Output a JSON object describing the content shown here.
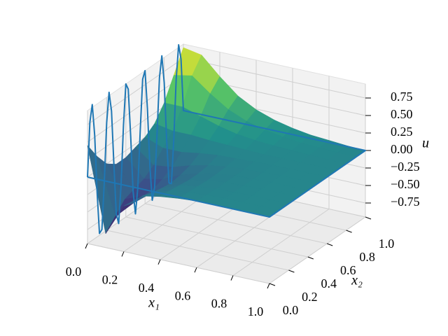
{
  "chart_data": {
    "type": "surface3d",
    "xlabel": "x₁",
    "ylabel": "x₂",
    "zlabel": "u",
    "colormap": "viridis",
    "grid": true,
    "xlim": [
      0,
      1
    ],
    "ylim": [
      0,
      1
    ],
    "zlim": [
      -0.95,
      0.95
    ],
    "xticks": [
      {
        "value": 0,
        "label": "0.0"
      },
      0.2,
      0.4,
      0.6,
      0.8,
      {
        "value": 1,
        "label": "1.0"
      }
    ],
    "yticks": [
      {
        "value": 0,
        "label": "0.0"
      },
      0.2,
      0.4,
      0.6,
      0.8,
      {
        "value": 1,
        "label": "1.0"
      }
    ],
    "zticks": [
      {
        "value": -0.75,
        "label": "−0.75"
      },
      {
        "value": -0.5,
        "label": "−0.50"
      },
      {
        "value": -0.25,
        "label": "−0.25"
      },
      {
        "value": 0,
        "label": "0.00"
      },
      0.25,
      {
        "value": 0.5,
        "label": "0.50"
      },
      0.75
    ],
    "surface": {
      "x1": [
        0,
        0.1,
        0.2,
        0.3,
        0.4,
        0.5,
        0.6,
        0.7,
        0.8,
        0.9,
        1
      ],
      "x2": [
        0,
        0.1,
        0.2,
        0.3,
        0.4,
        0.5,
        0.6,
        0.7,
        0.8,
        0.9,
        1
      ],
      "u": [
        [
          0.45,
          -0.75,
          -0.3,
          -0.1,
          -0.05,
          -0.02,
          0,
          0,
          0,
          0,
          0
        ],
        [
          0.2,
          -0.6,
          -0.35,
          -0.15,
          -0.06,
          -0.03,
          -0.01,
          0,
          0,
          0,
          0
        ],
        [
          0,
          -0.45,
          -0.35,
          -0.18,
          -0.08,
          -0.04,
          -0.02,
          -0.01,
          0,
          0,
          0
        ],
        [
          -0.1,
          -0.4,
          -0.35,
          -0.2,
          -0.1,
          -0.05,
          -0.02,
          -0.01,
          0,
          0,
          0
        ],
        [
          -0.1,
          -0.35,
          -0.3,
          -0.18,
          -0.1,
          -0.05,
          -0.02,
          -0.01,
          0,
          0,
          0
        ],
        [
          -0.05,
          -0.25,
          -0.22,
          -0.14,
          -0.08,
          -0.04,
          -0.02,
          -0.01,
          0,
          0,
          0
        ],
        [
          0,
          -0.1,
          -0.1,
          -0.06,
          -0.03,
          -0.02,
          -0.01,
          0,
          0,
          0,
          0
        ],
        [
          0.1,
          0.05,
          0.05,
          0.03,
          0.02,
          0.01,
          0,
          0,
          0,
          0,
          0
        ],
        [
          0.3,
          0.3,
          0.22,
          0.14,
          0.08,
          0.05,
          0.03,
          0.02,
          0.01,
          0,
          0
        ],
        [
          0.6,
          0.65,
          0.45,
          0.28,
          0.17,
          0.1,
          0.06,
          0.03,
          0.02,
          0.01,
          0
        ],
        [
          0.9,
          0.85,
          0.6,
          0.38,
          0.24,
          0.15,
          0.09,
          0.05,
          0.03,
          0.01,
          0
        ]
      ]
    },
    "boundary": {
      "color": "#1f77b4",
      "x1": [
        0,
        0,
        0,
        0,
        0,
        0,
        0,
        0,
        0,
        0,
        0,
        0,
        0,
        0,
        0,
        0,
        0,
        0,
        0,
        0,
        0,
        0,
        0,
        0,
        0,
        0,
        0,
        0,
        0,
        0,
        0,
        0,
        0,
        0,
        0,
        0,
        0,
        0,
        0,
        0,
        0,
        1,
        1,
        0
      ],
      "x2": [
        0,
        0.025,
        0.05,
        0.075,
        0.1,
        0.125,
        0.15,
        0.175,
        0.2,
        0.225,
        0.25,
        0.275,
        0.3,
        0.325,
        0.35,
        0.375,
        0.4,
        0.425,
        0.45,
        0.475,
        0.5,
        0.525,
        0.55,
        0.575,
        0.6,
        0.625,
        0.65,
        0.675,
        0.7,
        0.725,
        0.75,
        0.775,
        0.8,
        0.825,
        0.85,
        0.875,
        0.9,
        0.925,
        0.95,
        0.975,
        1,
        1,
        0,
        0
      ],
      "u": [
        0,
        0.76,
        0.988,
        0.522,
        -0.309,
        -0.924,
        -0.891,
        -0.233,
        0.588,
        0.997,
        0.707,
        -0.078,
        -0.809,
        -0.972,
        -0.454,
        0.383,
        0.951,
        0.853,
        0.156,
        -0.649,
        -1,
        -0.649,
        0.156,
        0.853,
        0.951,
        0.383,
        -0.454,
        -0.972,
        -0.809,
        -0.078,
        0.707,
        0.997,
        0.588,
        -0.233,
        -0.891,
        -0.924,
        -0.309,
        0.522,
        0.988,
        0.76,
        0,
        0,
        0,
        0
      ]
    }
  }
}
